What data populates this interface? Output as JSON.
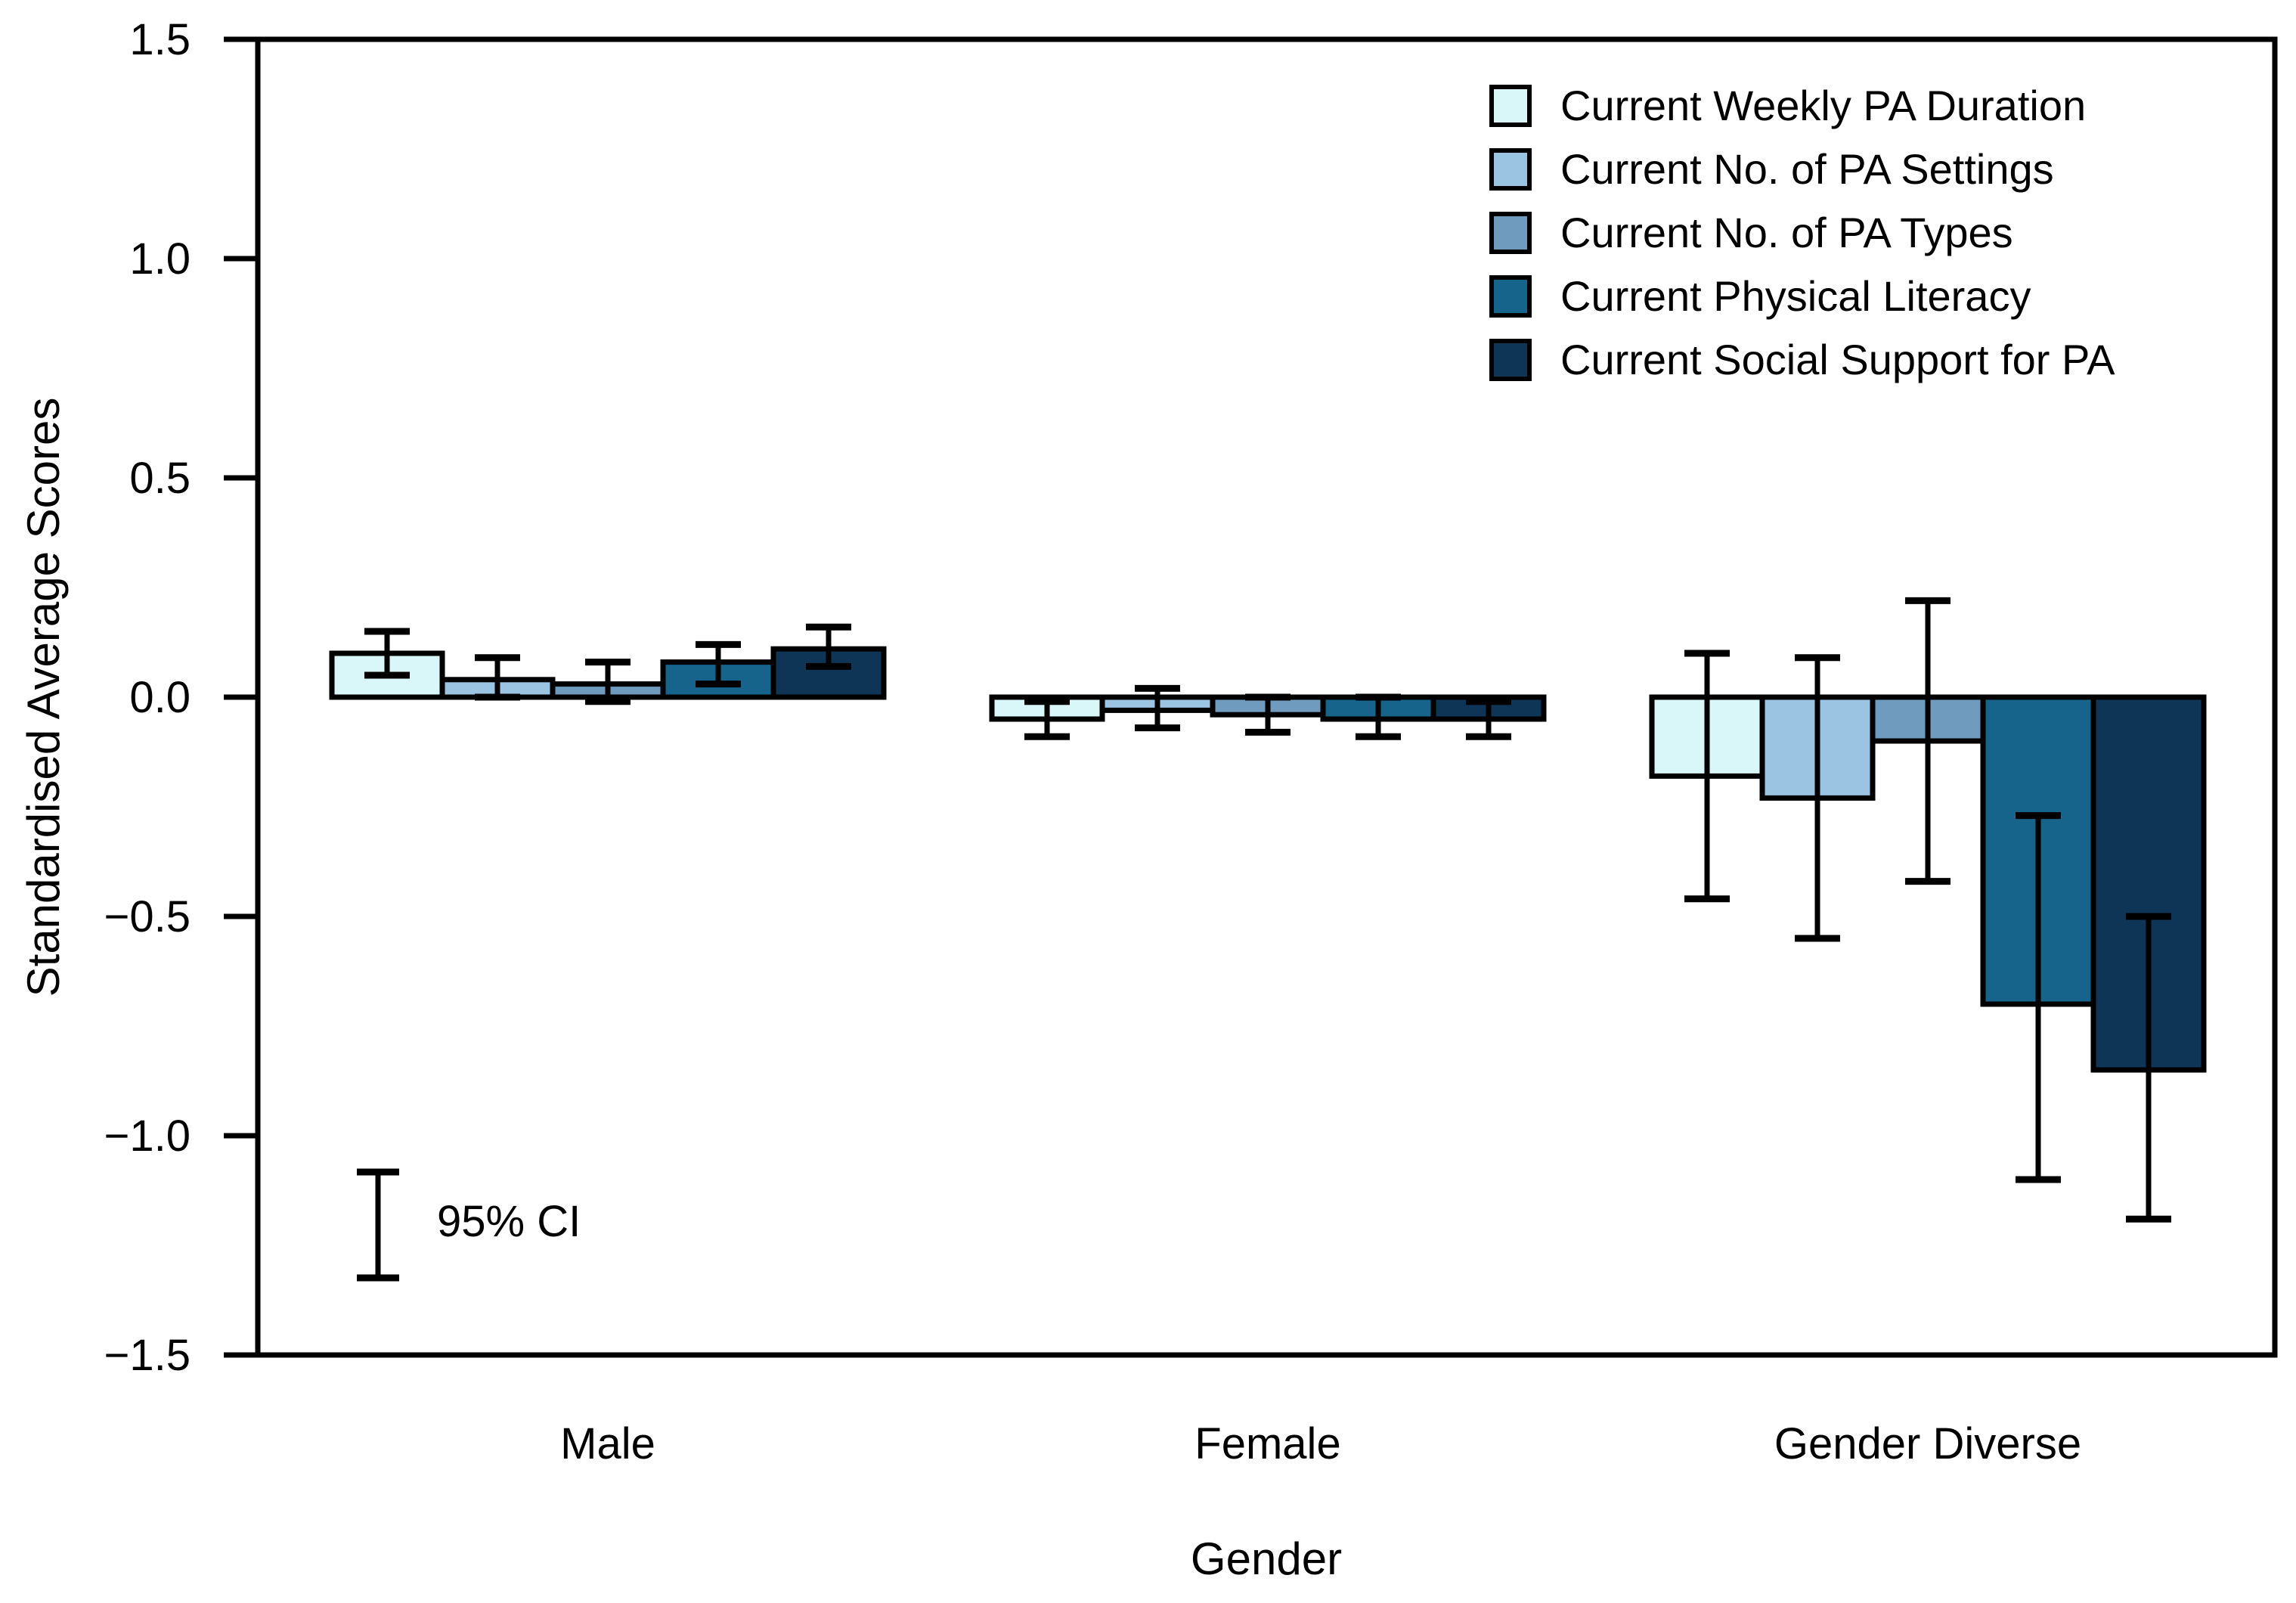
{
  "figure": {
    "ylabel": "Standardised Average Scores",
    "xlabel": "Gender",
    "ci_annotation": "95% CI"
  },
  "chart_data": {
    "type": "bar",
    "title": "",
    "xlabel": "Gender",
    "ylabel": "Standardised Average Scores",
    "ylim": [
      -1.5,
      1.5
    ],
    "yticks": [
      1.5,
      1.0,
      0.5,
      0.0,
      -0.5,
      -1.0,
      -1.5
    ],
    "ytick_labels": [
      "1.5",
      "1.0",
      "0.5",
      "0.0",
      "−0.5",
      "−1.0",
      "−1.5"
    ],
    "categories": [
      "Male",
      "Female",
      "Gender Diverse"
    ],
    "grid": false,
    "legend_position": "top-right",
    "bar_border_color": "#000000",
    "error_bar_color": "#000000",
    "error_bar_note": "95% CI",
    "series": [
      {
        "name": "Current Weekly PA Duration",
        "color": "#d9f6f9",
        "values": [
          0.1,
          -0.05,
          -0.18
        ],
        "ci_low": [
          0.05,
          -0.09,
          -0.46
        ],
        "ci_high": [
          0.15,
          -0.01,
          0.1
        ]
      },
      {
        "name": "Current No. of PA Settings",
        "color": "#9bc4e2",
        "values": [
          0.04,
          -0.03,
          -0.23
        ],
        "ci_low": [
          0.0,
          -0.07,
          -0.55
        ],
        "ci_high": [
          0.09,
          0.02,
          0.09
        ]
      },
      {
        "name": "Current No. of PA Types",
        "color": "#6f9cbe",
        "values": [
          0.03,
          -0.04,
          -0.1
        ],
        "ci_low": [
          -0.01,
          -0.08,
          -0.42
        ],
        "ci_high": [
          0.08,
          0.0,
          0.22
        ]
      },
      {
        "name": "Current Physical Literacy",
        "color": "#16638c",
        "values": [
          0.08,
          -0.05,
          -0.7
        ],
        "ci_low": [
          0.03,
          -0.09,
          -1.1
        ],
        "ci_high": [
          0.12,
          0.0,
          -0.27
        ]
      },
      {
        "name": "Current Social Support for PA",
        "color": "#0e3456",
        "values": [
          0.11,
          -0.05,
          -0.85
        ],
        "ci_low": [
          0.07,
          -0.09,
          -1.19
        ],
        "ci_high": [
          0.16,
          -0.01,
          -0.5
        ]
      }
    ]
  }
}
